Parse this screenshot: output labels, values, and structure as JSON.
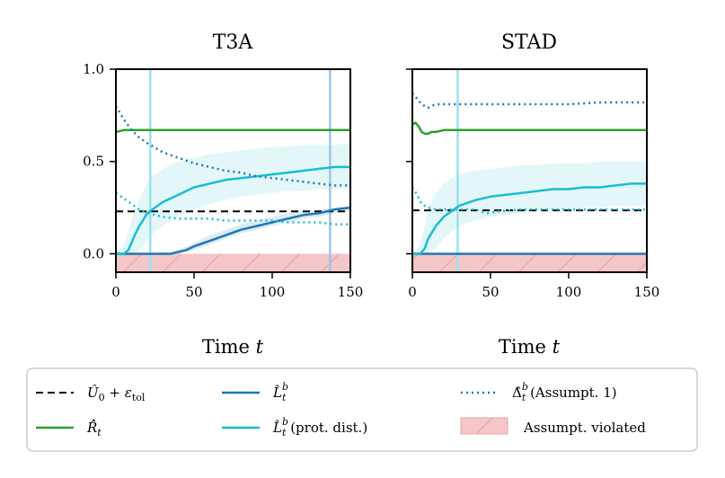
{
  "chart_data": [
    {
      "type": "line",
      "title": "T3A",
      "xlabel": "Time ",
      "xlabel_var": "t",
      "xlim": [
        0,
        150
      ],
      "ylim": [
        -0.1,
        1.0
      ],
      "xticks": [
        "0",
        "50",
        "100",
        "150"
      ],
      "yticks": [
        "0.0",
        "0.5",
        "1.0"
      ],
      "threshold": 0.23,
      "vlines": [
        {
          "x": 22,
          "color": "#9be2ec"
        },
        {
          "x": 137,
          "color": "#9ec5e5"
        }
      ],
      "series": [
        {
          "name": "R_hat",
          "color": "#2ca02c",
          "style": "solid",
          "x": [
            0,
            5,
            10,
            20,
            30,
            40,
            50,
            60,
            70,
            80,
            90,
            100,
            110,
            120,
            130,
            140,
            150
          ],
          "y": [
            0.66,
            0.67,
            0.67,
            0.67,
            0.67,
            0.67,
            0.67,
            0.67,
            0.67,
            0.67,
            0.67,
            0.67,
            0.67,
            0.67,
            0.67,
            0.67,
            0.67
          ]
        },
        {
          "name": "L_b",
          "color": "#1f77b4",
          "style": "solid",
          "x": [
            0,
            10,
            20,
            30,
            35,
            40,
            45,
            50,
            60,
            70,
            80,
            90,
            100,
            110,
            120,
            130,
            140,
            150
          ],
          "y": [
            0.0,
            0.0,
            0.0,
            0.0,
            0.0,
            0.01,
            0.02,
            0.04,
            0.07,
            0.1,
            0.13,
            0.15,
            0.17,
            0.19,
            0.21,
            0.22,
            0.24,
            0.25
          ],
          "band_upper": [
            0.0,
            0.0,
            0.0,
            0.01,
            0.01,
            0.02,
            0.04,
            0.06,
            0.1,
            0.13,
            0.16,
            0.18,
            0.2,
            0.22,
            0.23,
            0.24,
            0.25,
            0.26
          ],
          "band_lower": [
            0.0,
            0.0,
            0.0,
            0.0,
            0.0,
            0.0,
            0.01,
            0.02,
            0.05,
            0.08,
            0.11,
            0.13,
            0.15,
            0.17,
            0.19,
            0.2,
            0.22,
            0.23
          ]
        },
        {
          "name": "L_b_prot",
          "color": "#17becf",
          "style": "solid",
          "x": [
            0,
            5,
            8,
            10,
            12,
            15,
            18,
            20,
            25,
            30,
            40,
            50,
            60,
            70,
            80,
            90,
            100,
            110,
            120,
            130,
            140,
            150
          ],
          "y": [
            0.0,
            0.0,
            0.02,
            0.06,
            0.1,
            0.15,
            0.19,
            0.22,
            0.25,
            0.28,
            0.32,
            0.36,
            0.38,
            0.4,
            0.41,
            0.42,
            0.43,
            0.44,
            0.45,
            0.46,
            0.47,
            0.47
          ],
          "band_upper": [
            0.0,
            0.05,
            0.12,
            0.18,
            0.24,
            0.3,
            0.35,
            0.39,
            0.43,
            0.46,
            0.5,
            0.52,
            0.54,
            0.55,
            0.56,
            0.57,
            0.58,
            0.58,
            0.59,
            0.59,
            0.59,
            0.6
          ],
          "band_lower": [
            0.0,
            0.0,
            0.0,
            0.0,
            0.0,
            0.02,
            0.05,
            0.08,
            0.12,
            0.15,
            0.2,
            0.24,
            0.27,
            0.29,
            0.31,
            0.32,
            0.33,
            0.34,
            0.34,
            0.35,
            0.35,
            0.35
          ]
        },
        {
          "name": "Delta_b",
          "color": "#1f77b4",
          "style": "dotted",
          "x": [
            0,
            5,
            10,
            15,
            20,
            30,
            40,
            50,
            60,
            70,
            80,
            90,
            100,
            110,
            120,
            130,
            140,
            150
          ],
          "y": [
            0.8,
            0.73,
            0.67,
            0.63,
            0.6,
            0.55,
            0.52,
            0.49,
            0.47,
            0.45,
            0.44,
            0.42,
            0.41,
            0.4,
            0.39,
            0.38,
            0.37,
            0.37
          ]
        },
        {
          "name": "Delta_b_prot",
          "color": "#17becf",
          "style": "dotted",
          "x": [
            0,
            5,
            10,
            15,
            20,
            25,
            30,
            40,
            50,
            60,
            70,
            80,
            90,
            100,
            110,
            120,
            130,
            140,
            150
          ],
          "y": [
            0.33,
            0.3,
            0.27,
            0.24,
            0.22,
            0.21,
            0.2,
            0.19,
            0.19,
            0.19,
            0.18,
            0.18,
            0.18,
            0.18,
            0.17,
            0.17,
            0.17,
            0.16,
            0.16
          ]
        }
      ]
    },
    {
      "type": "line",
      "title": "STAD",
      "xlabel": "Time ",
      "xlabel_var": "t",
      "xlim": [
        0,
        150
      ],
      "ylim": [
        -0.1,
        1.0
      ],
      "xticks": [
        "0",
        "50",
        "100",
        "150"
      ],
      "yticks": [
        "",
        "",
        ""
      ],
      "threshold": 0.235,
      "vlines": [
        {
          "x": 29,
          "color": "#9be2ec"
        }
      ],
      "series": [
        {
          "name": "R_hat",
          "color": "#2ca02c",
          "style": "solid",
          "x": [
            0,
            2,
            4,
            6,
            8,
            10,
            12,
            15,
            20,
            30,
            40,
            60,
            80,
            100,
            120,
            150
          ],
          "y": [
            0.7,
            0.71,
            0.69,
            0.66,
            0.65,
            0.65,
            0.66,
            0.66,
            0.67,
            0.67,
            0.67,
            0.67,
            0.67,
            0.67,
            0.67,
            0.67
          ]
        },
        {
          "name": "L_b",
          "color": "#1f77b4",
          "style": "solid",
          "x": [
            0,
            150
          ],
          "y": [
            0.0,
            0.0
          ]
        },
        {
          "name": "L_b_prot",
          "color": "#17becf",
          "style": "solid",
          "x": [
            0,
            5,
            8,
            10,
            15,
            20,
            25,
            30,
            40,
            50,
            60,
            70,
            80,
            90,
            100,
            110,
            120,
            130,
            140,
            150
          ],
          "y": [
            0.0,
            0.0,
            0.03,
            0.08,
            0.15,
            0.2,
            0.23,
            0.26,
            0.29,
            0.31,
            0.32,
            0.33,
            0.34,
            0.35,
            0.35,
            0.36,
            0.36,
            0.37,
            0.38,
            0.38
          ],
          "band_upper": [
            0.0,
            0.05,
            0.15,
            0.25,
            0.33,
            0.38,
            0.41,
            0.43,
            0.45,
            0.46,
            0.47,
            0.48,
            0.48,
            0.49,
            0.49,
            0.49,
            0.5,
            0.5,
            0.5,
            0.5
          ],
          "band_lower": [
            0.0,
            0.0,
            0.0,
            0.0,
            0.03,
            0.08,
            0.12,
            0.15,
            0.18,
            0.2,
            0.21,
            0.22,
            0.23,
            0.24,
            0.24,
            0.25,
            0.25,
            0.26,
            0.26,
            0.26
          ]
        },
        {
          "name": "Delta_b",
          "color": "#1f77b4",
          "style": "dotted",
          "x": [
            0,
            3,
            6,
            10,
            12,
            15,
            20,
            30,
            50,
            80,
            100,
            120,
            150
          ],
          "y": [
            0.87,
            0.84,
            0.81,
            0.79,
            0.8,
            0.81,
            0.81,
            0.81,
            0.81,
            0.81,
            0.81,
            0.82,
            0.82
          ]
        },
        {
          "name": "Delta_b_prot",
          "color": "#17becf",
          "style": "dotted",
          "x": [
            0,
            3,
            6,
            10,
            15,
            20,
            30,
            40,
            48,
            55,
            70,
            90,
            110,
            130,
            150
          ],
          "y": [
            0.36,
            0.32,
            0.27,
            0.25,
            0.24,
            0.24,
            0.24,
            0.24,
            0.22,
            0.23,
            0.24,
            0.24,
            0.24,
            0.24,
            0.24
          ]
        }
      ]
    }
  ],
  "legend": {
    "position": "bottom",
    "items": [
      {
        "key": "threshold",
        "style": "dashed",
        "color": "#000000",
        "label": "Û0 + εtol"
      },
      {
        "key": "R_hat",
        "style": "solid",
        "color": "#2ca02c",
        "label": "R̂̂t"
      },
      {
        "key": "L_b",
        "style": "solid",
        "color": "#1f77b4",
        "label": "L̂tb"
      },
      {
        "key": "L_b_prot",
        "style": "solid",
        "color": "#17becf",
        "label": "L̂tb (prot. dist.)"
      },
      {
        "key": "Delta_b",
        "style": "dotted",
        "color": "#1f77b4",
        "label": "Δ̂tb (Assumpt. 1)"
      },
      {
        "key": "violated",
        "style": "patch",
        "color": "#f4c6c8",
        "label": "Assumpt. violated"
      }
    ]
  }
}
